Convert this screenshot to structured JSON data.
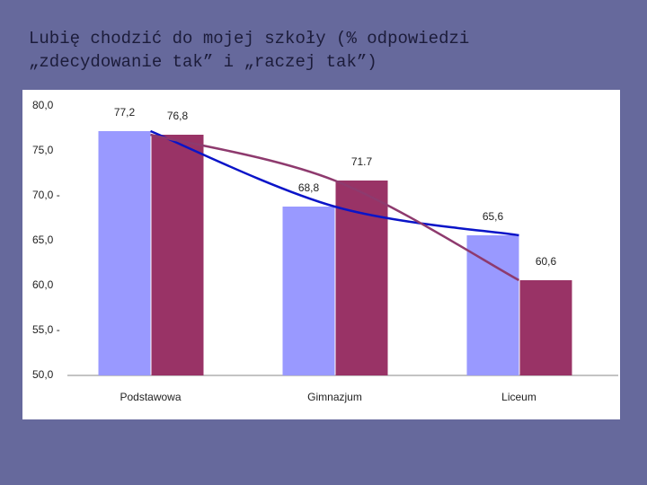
{
  "chart_data": {
    "type": "bar",
    "title": [
      "Lubię chodzić do mojej szkoły (% odpowiedzi",
      "„zdecydowanie tak” i „raczej tak”)"
    ],
    "categories": [
      "Podstawowa",
      "Gimnazjum",
      "Liceum"
    ],
    "series": [
      {
        "color": "#9999ff",
        "line_color": "#0a14c8",
        "values": [
          77.2,
          68.8,
          65.6
        ],
        "value_labels": [
          "77,2",
          "68,8",
          "65,6"
        ]
      },
      {
        "color": "#993366",
        "line_color": "#8e3a6e",
        "values": [
          76.8,
          71.7,
          60.6
        ],
        "value_labels": [
          "76,8",
          "71.7",
          "60,6"
        ]
      }
    ],
    "trend_lines": true,
    "ylim": [
      50,
      80
    ],
    "yticks": [
      {
        "value": 50,
        "label": "50,0"
      },
      {
        "value": 55,
        "label": "55,0 -"
      },
      {
        "value": 60,
        "label": "60,0"
      },
      {
        "value": 65,
        "label": "65,0"
      },
      {
        "value": 70,
        "label": "70,0 -"
      },
      {
        "value": 75,
        "label": "75,0"
      },
      {
        "value": 80,
        "label": "80,0"
      }
    ],
    "grid": false
  }
}
